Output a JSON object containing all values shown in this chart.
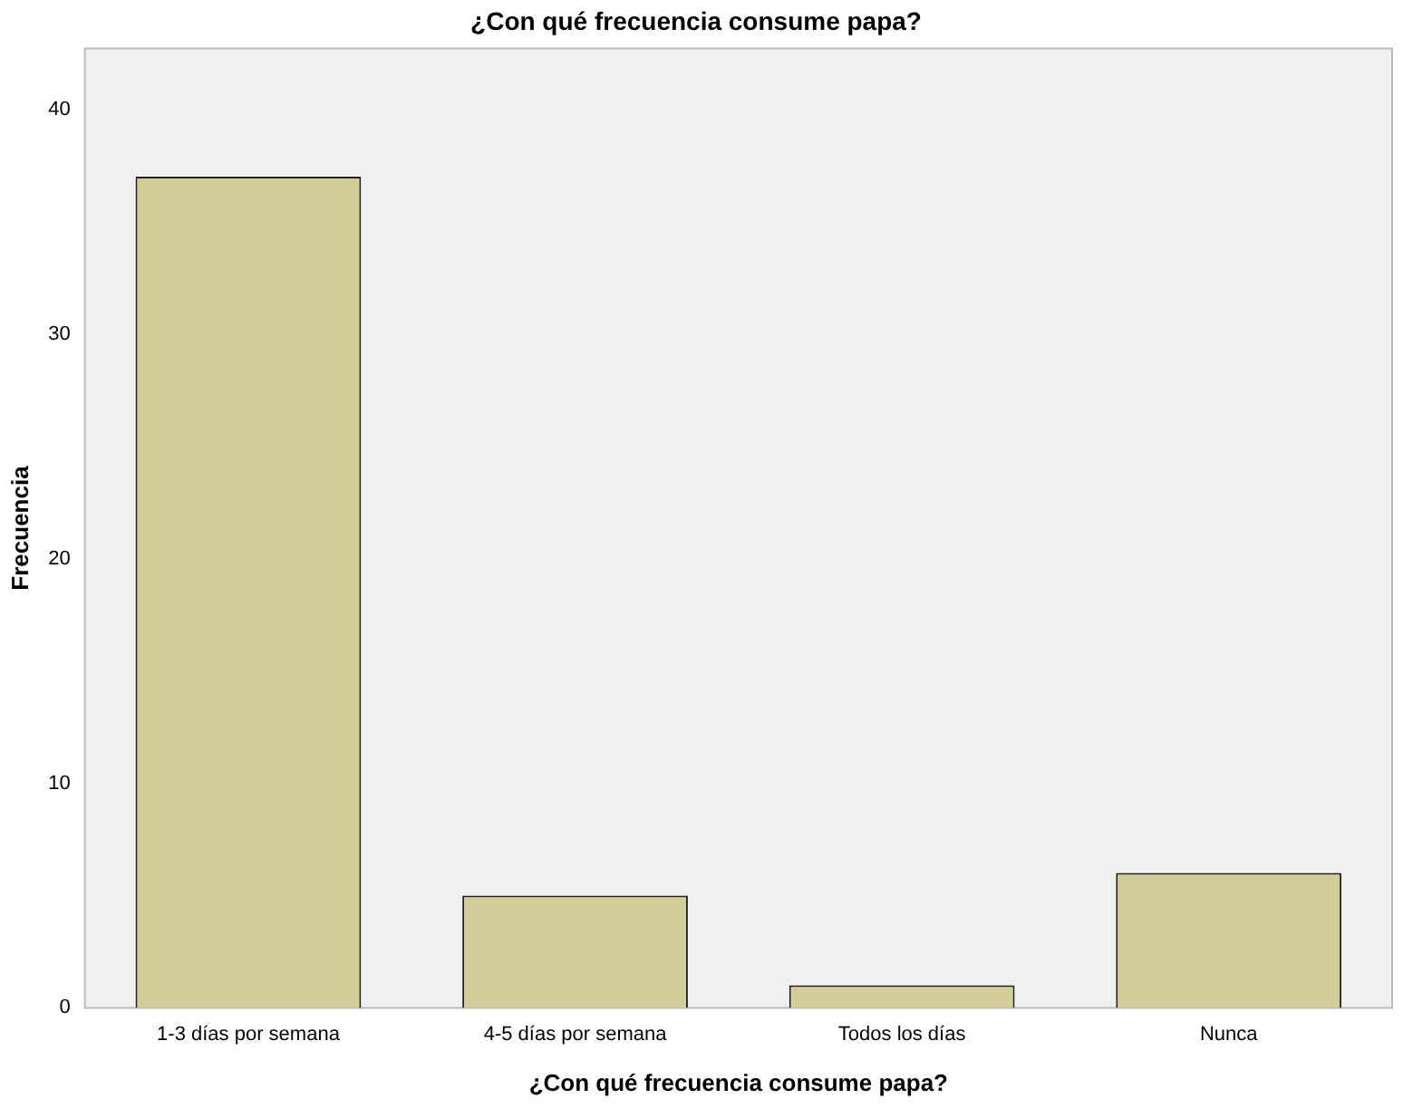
{
  "chart_data": {
    "type": "bar",
    "title": "¿Con qué frecuencia consume papa?",
    "xlabel": "¿Con qué frecuencia consume papa?",
    "ylabel": "Frecuencia",
    "categories": [
      "1-3 días por semana",
      "4-5 días por semana",
      "Todos los días",
      "Nunca"
    ],
    "values": [
      37,
      5,
      1,
      6
    ],
    "color": "#d3ce97",
    "ylim": [
      0,
      42.7
    ],
    "yticks": [
      0,
      10,
      20,
      30,
      40
    ],
    "grid": false,
    "legend": false
  }
}
